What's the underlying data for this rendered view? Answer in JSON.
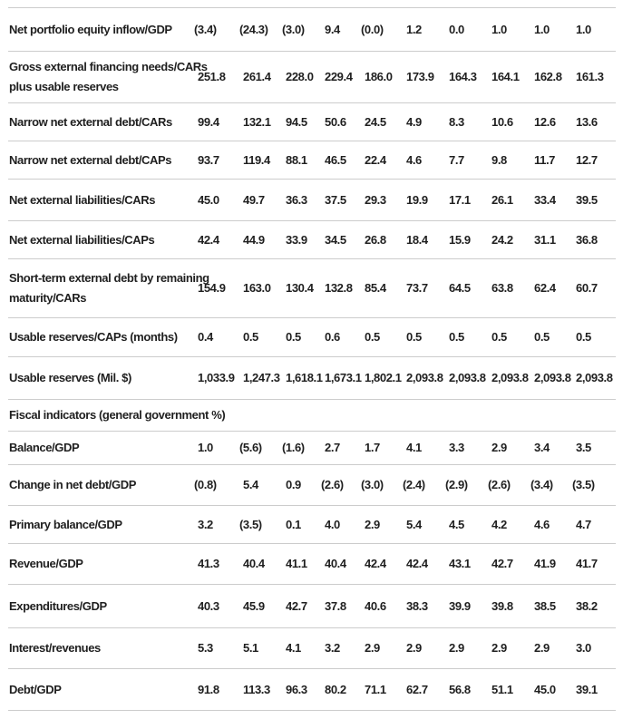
{
  "colors": {
    "text": "#1f1f1f",
    "rule": "#cccccc",
    "background": "#ffffff"
  },
  "table": {
    "section_header": "Fiscal indicators (general government %)",
    "rows": [
      {
        "label": "Net portfolio equity inflow/GDP",
        "values": [
          "(3.4)",
          "(24.3)",
          "(3.0)",
          "9.4",
          "(0.0)",
          "1.2",
          "0.0",
          "1.0",
          "1.0",
          "1.0"
        ]
      },
      {
        "label": "Gross external financing needs/CARs\nplus usable reserves",
        "values": [
          "251.8",
          "261.4",
          "228.0",
          "229.4",
          "186.0",
          "173.9",
          "164.3",
          "164.1",
          "162.8",
          "161.3"
        ]
      },
      {
        "label": "Narrow net external debt/CARs",
        "values": [
          "99.4",
          "132.1",
          "94.5",
          "50.6",
          "24.5",
          "4.9",
          "8.3",
          "10.6",
          "12.6",
          "13.6"
        ]
      },
      {
        "label": "Narrow net external debt/CAPs",
        "values": [
          "93.7",
          "119.4",
          "88.1",
          "46.5",
          "22.4",
          "4.6",
          "7.7",
          "9.8",
          "11.7",
          "12.7"
        ]
      },
      {
        "label": "Net external liabilities/CARs",
        "values": [
          "45.0",
          "49.7",
          "36.3",
          "37.5",
          "29.3",
          "19.9",
          "17.1",
          "26.1",
          "33.4",
          "39.5"
        ]
      },
      {
        "label": "Net external liabilities/CAPs",
        "values": [
          "42.4",
          "44.9",
          "33.9",
          "34.5",
          "26.8",
          "18.4",
          "15.9",
          "24.2",
          "31.1",
          "36.8"
        ]
      },
      {
        "label": "Short-term external debt by remaining\nmaturity/CARs",
        "values": [
          "154.9",
          "163.0",
          "130.4",
          "132.8",
          "85.4",
          "73.7",
          "64.5",
          "63.8",
          "62.4",
          "60.7"
        ]
      },
      {
        "label": "Usable reserves/CAPs (months)",
        "values": [
          "0.4",
          "0.5",
          "0.5",
          "0.6",
          "0.5",
          "0.5",
          "0.5",
          "0.5",
          "0.5",
          "0.5"
        ]
      },
      {
        "label": "Usable reserves (Mil. $)",
        "values": [
          "1,033.9",
          "1,247.3",
          "1,618.1",
          "1,673.1",
          "1,802.1",
          "2,093.8",
          "2,093.8",
          "2,093.8",
          "2,093.8",
          "2,093.8"
        ]
      },
      {
        "label": "Fiscal indicators (general government %)",
        "type": "section"
      },
      {
        "label": "Balance/GDP",
        "values": [
          "1.0",
          "(5.6)",
          "(1.6)",
          "2.7",
          "1.7",
          "4.1",
          "3.3",
          "2.9",
          "3.4",
          "3.5"
        ]
      },
      {
        "label": "Change in net debt/GDP",
        "values": [
          "(0.8)",
          "5.4",
          "0.9",
          "(2.6)",
          "(3.0)",
          "(2.4)",
          "(2.9)",
          "(2.6)",
          "(3.4)",
          "(3.5)"
        ]
      },
      {
        "label": "Primary balance/GDP",
        "values": [
          "3.2",
          "(3.5)",
          "0.1",
          "4.0",
          "2.9",
          "5.4",
          "4.5",
          "4.2",
          "4.6",
          "4.7"
        ]
      },
      {
        "label": "Revenue/GDP",
        "values": [
          "41.3",
          "40.4",
          "41.1",
          "40.4",
          "42.4",
          "42.4",
          "43.1",
          "42.7",
          "41.9",
          "41.7"
        ]
      },
      {
        "label": "Expenditures/GDP",
        "values": [
          "40.3",
          "45.9",
          "42.7",
          "37.8",
          "40.6",
          "38.3",
          "39.9",
          "39.8",
          "38.5",
          "38.2"
        ]
      },
      {
        "label": "Interest/revenues",
        "values": [
          "5.3",
          "5.1",
          "4.1",
          "3.2",
          "2.9",
          "2.9",
          "2.9",
          "2.9",
          "2.9",
          "3.0"
        ]
      },
      {
        "label": "Debt/GDP",
        "values": [
          "91.8",
          "113.3",
          "96.3",
          "80.2",
          "71.1",
          "62.7",
          "56.8",
          "51.1",
          "45.0",
          "39.1"
        ]
      }
    ]
  }
}
